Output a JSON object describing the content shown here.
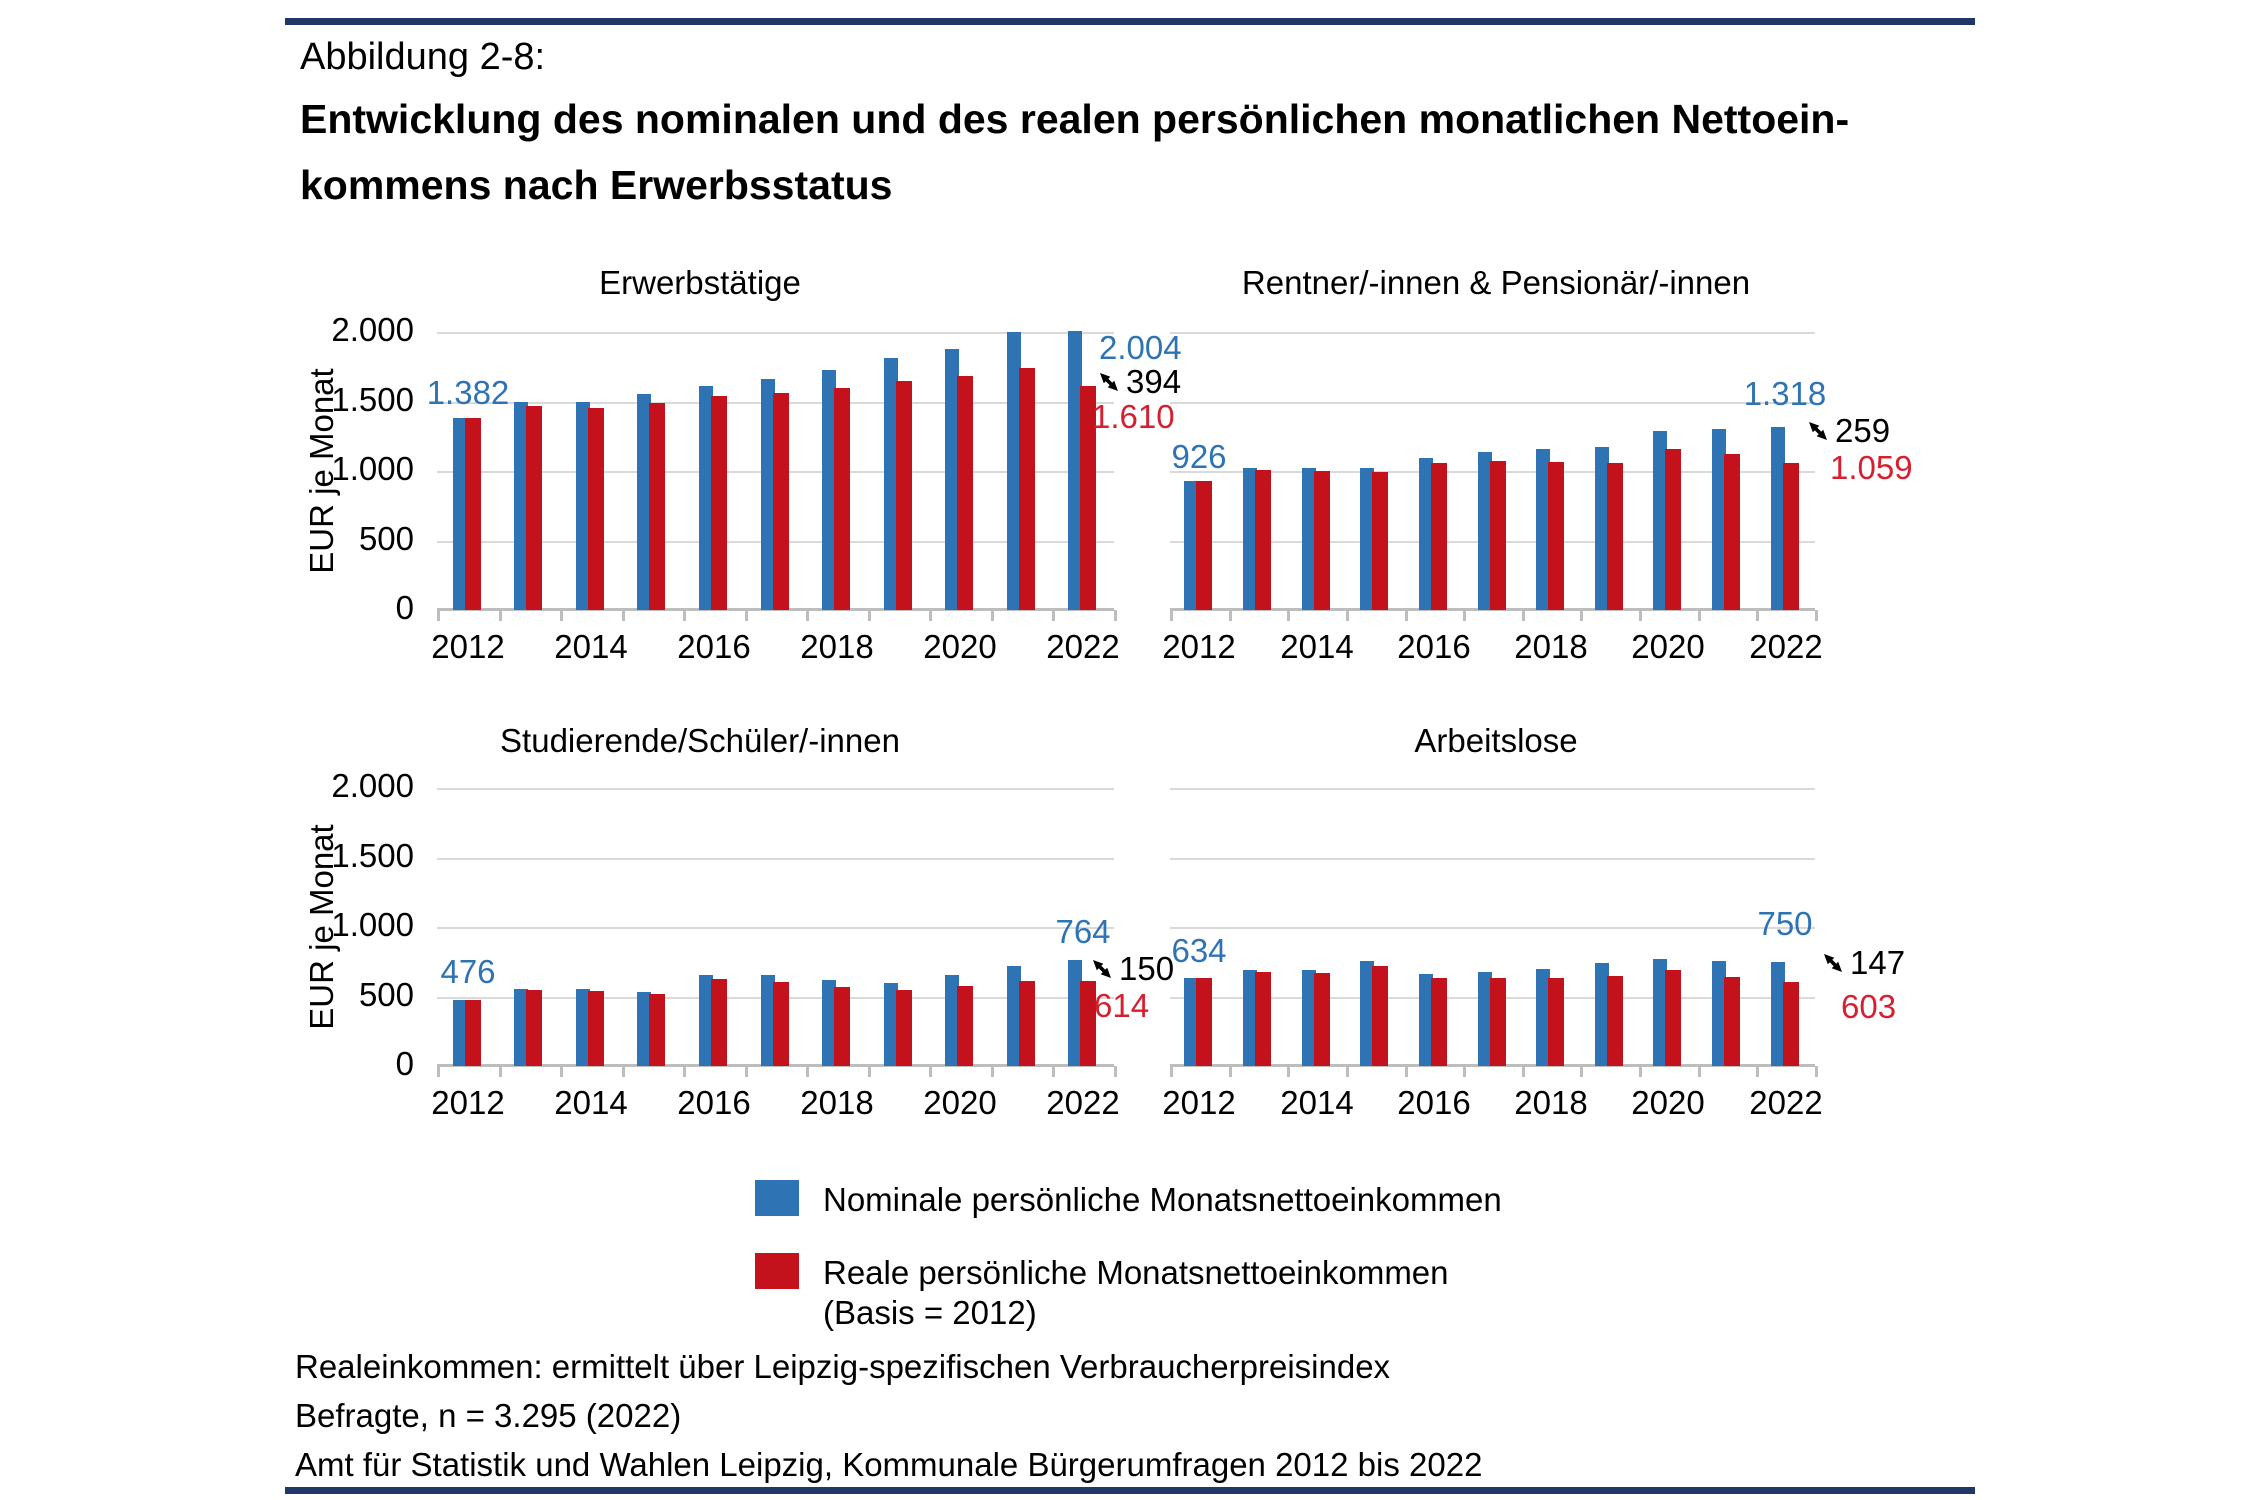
{
  "header": {
    "figure_label": "Abbildung 2-8:",
    "title_line1": "Entwicklung des nominalen und des realen persönlichen monatlichen Nettoein-",
    "title_line2": "kommens nach Erwerbsstatus"
  },
  "axis": {
    "ylabel": "EUR je Monat",
    "yticks": [
      "2.000",
      "1.500",
      "1.000",
      "500",
      "0"
    ],
    "xticks": [
      "2012",
      "2014",
      "2016",
      "2018",
      "2020",
      "2022"
    ],
    "ymax": 2000
  },
  "chart_data": [
    {
      "type": "bar",
      "title": "Erwerbstätige",
      "categories": [
        2012,
        2013,
        2014,
        2015,
        2016,
        2017,
        2018,
        2019,
        2020,
        2021,
        2022
      ],
      "series": [
        {
          "name": "Nominale persönliche Monatsnettoeinkommen",
          "values": [
            1382,
            1495,
            1495,
            1555,
            1610,
            1660,
            1730,
            1810,
            1875,
            2000,
            2004
          ]
        },
        {
          "name": "Reale persönliche Monatsnettoeinkommen (Basis = 2012)",
          "values": [
            1382,
            1465,
            1450,
            1490,
            1540,
            1560,
            1595,
            1645,
            1680,
            1740,
            1610
          ]
        }
      ],
      "ylim": [
        0,
        2000
      ],
      "annotations": {
        "start_nominal": "1.382",
        "end_nominal": "2.004",
        "difference": "394",
        "end_real": "1.610"
      }
    },
    {
      "type": "bar",
      "title": "Rentner/-innen & Pensionär/-innen",
      "categories": [
        2012,
        2013,
        2014,
        2015,
        2016,
        2017,
        2018,
        2019,
        2020,
        2021,
        2022
      ],
      "series": [
        {
          "name": "Nominale persönliche Monatsnettoeinkommen",
          "values": [
            926,
            1020,
            1020,
            1020,
            1095,
            1140,
            1155,
            1170,
            1290,
            1305,
            1318
          ]
        },
        {
          "name": "Reale persönliche Monatsnettoeinkommen (Basis = 2012)",
          "values": [
            926,
            1005,
            1000,
            995,
            1055,
            1075,
            1065,
            1060,
            1160,
            1120,
            1059
          ]
        }
      ],
      "ylim": [
        0,
        2000
      ],
      "annotations": {
        "start_nominal": "926",
        "end_nominal": "1.318",
        "difference": "259",
        "end_real": "1.059"
      }
    },
    {
      "type": "bar",
      "title": "Studierende/Schüler/-innen",
      "categories": [
        2012,
        2013,
        2014,
        2015,
        2016,
        2017,
        2018,
        2019,
        2020,
        2021,
        2022
      ],
      "series": [
        {
          "name": "Nominale persönliche Monatsnettoeinkommen",
          "values": [
            476,
            557,
            557,
            535,
            655,
            652,
            620,
            600,
            658,
            722,
            764
          ]
        },
        {
          "name": "Reale persönliche Monatsnettoeinkommen (Basis = 2012)",
          "values": [
            476,
            545,
            540,
            515,
            628,
            605,
            570,
            545,
            576,
            611,
            614
          ]
        }
      ],
      "ylim": [
        0,
        2000
      ],
      "annotations": {
        "start_nominal": "476",
        "end_nominal": "764",
        "difference": "150",
        "end_real": "614"
      }
    },
    {
      "type": "bar",
      "title": "Arbeitslose",
      "categories": [
        2012,
        2013,
        2014,
        2015,
        2016,
        2017,
        2018,
        2019,
        2020,
        2021,
        2022
      ],
      "series": [
        {
          "name": "Nominale persönliche Monatsnettoeinkommen",
          "values": [
            634,
            690,
            690,
            754,
            662,
            678,
            697,
            738,
            773,
            752,
            750
          ]
        },
        {
          "name": "Reale persönliche Monatsnettoeinkommen (Basis = 2012)",
          "values": [
            634,
            674,
            670,
            720,
            636,
            636,
            636,
            650,
            690,
            643,
            603
          ]
        }
      ],
      "ylim": [
        0,
        2000
      ],
      "annotations": {
        "start_nominal": "634",
        "end_nominal": "750",
        "difference": "147",
        "end_real": "603"
      }
    }
  ],
  "legend": [
    {
      "label": "Nominale persönliche Monatsnettoeinkommen"
    },
    {
      "label": "Reale persönliche Monatsnettoeinkommen",
      "sublabel": "(Basis = 2012)"
    }
  ],
  "footnotes": [
    "Realeinkommen: ermittelt über Leipzig-spezifischen Verbraucherpreisindex",
    "Befragte, n = 3.295 (2022)",
    "Amt für Statistik und Wahlen Leipzig, Kommunale Bürgerumfragen 2012 bis 2022"
  ],
  "colors": {
    "nominal_bar": "#2E74B5",
    "real_bar": "#C3121C",
    "nominal_text": "#2E74B5",
    "real_text": "#D6202F",
    "diff_text": "#000000",
    "rule": "#1F3864"
  }
}
